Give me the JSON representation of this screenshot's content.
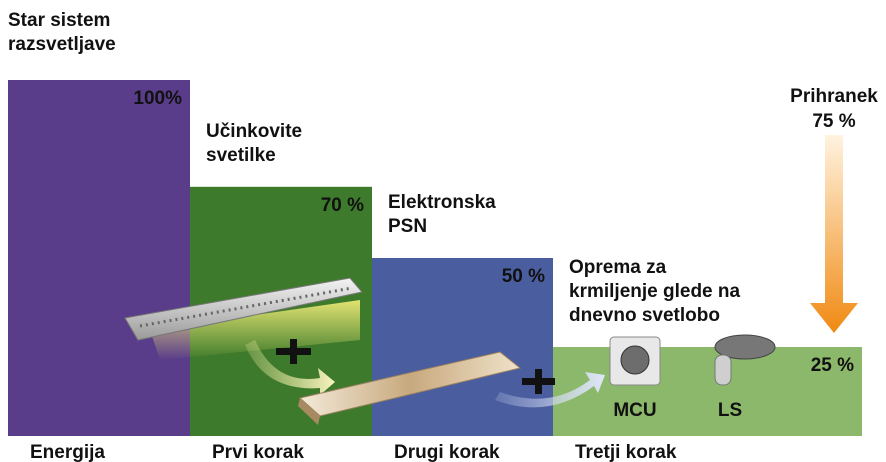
{
  "chart_data": {
    "type": "bar",
    "step_labels": [
      [
        "Star sistem",
        "razsvetljave"
      ],
      [
        "Učinkovite",
        "svetilke"
      ],
      [
        "Elektronska",
        "PSN"
      ],
      [
        "Oprema za",
        "krmiljenje glede na",
        "dnevno svetlobo"
      ]
    ],
    "categories": [
      "Energija",
      "Prvi korak",
      "Drugi korak",
      "Tretji korak"
    ],
    "values": [
      100,
      70,
      50,
      25
    ],
    "value_labels": [
      "100%",
      "70 %",
      "50 %",
      "25 %"
    ],
    "colors": [
      "#5a3d8a",
      "#3e7a2b",
      "#4a5e9f",
      "#8cb86b"
    ],
    "ylim": [
      0,
      100
    ],
    "savings": {
      "label": "Prihranek",
      "value": 75,
      "value_label": "75 %"
    },
    "icons": [
      "MCU",
      "LS"
    ]
  }
}
